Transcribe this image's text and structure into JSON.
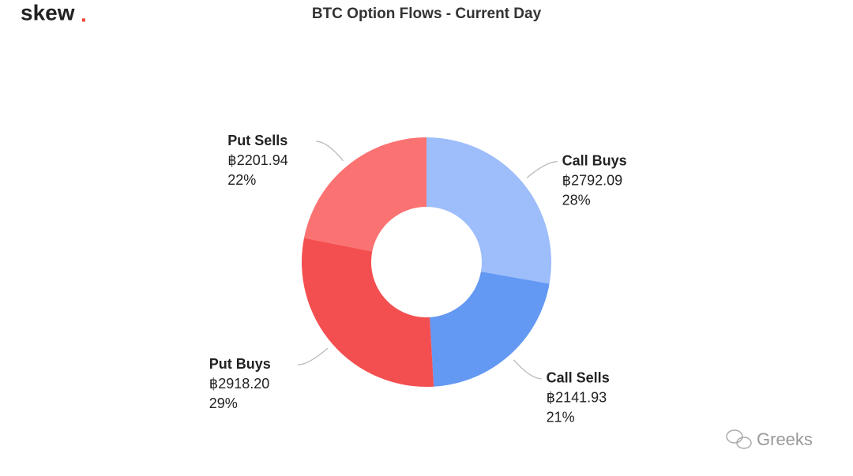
{
  "logo": {
    "text": "skew",
    "dot": "."
  },
  "watermark": "Greeks",
  "chart_data": {
    "type": "donut",
    "title": "BTC Option Flows - Current Day",
    "categories": [
      "Call Buys",
      "Call Sells",
      "Put Buys",
      "Put Sells"
    ],
    "values": [
      2792.09,
      2141.93,
      2918.2,
      2201.94
    ],
    "value_labels": [
      "฿2792.09",
      "฿2141.93",
      "฿2918.20",
      "฿2201.94"
    ],
    "percentages": [
      28,
      21,
      29,
      22
    ],
    "percentage_labels": [
      "28%",
      "21%",
      "29%",
      "22%"
    ],
    "colors": [
      "#9dbdfb",
      "#6398f3",
      "#f44f50",
      "#fb7272"
    ]
  }
}
